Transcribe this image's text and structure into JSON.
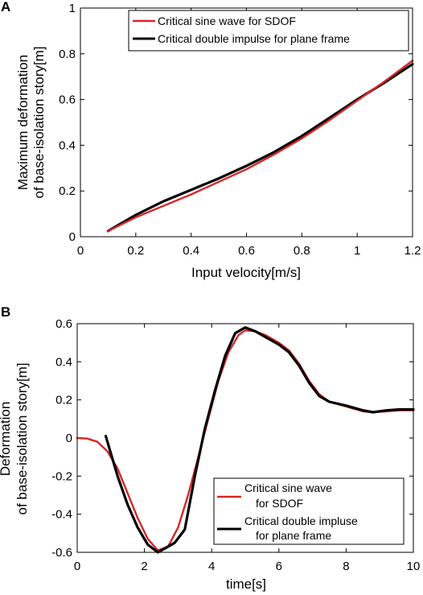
{
  "chart_data": [
    {
      "panel": "A",
      "type": "line",
      "xlabel": "Input velocity[m/s]",
      "ylabel": [
        "Maximum deformation",
        "of base-isolation story[m]"
      ],
      "xlim": [
        0,
        1.2
      ],
      "ylim": [
        0,
        1
      ],
      "xticks": [
        "0",
        "0.2",
        "0.4",
        "0.6",
        "0.8",
        "1",
        "1.2"
      ],
      "yticks": [
        "0",
        "0.2",
        "0.4",
        "0.6",
        "0.8",
        "1"
      ],
      "grid": false,
      "legend_position": "top-right",
      "series": [
        {
          "name": "Critical sine wave for SDOF",
          "color": "#d62728",
          "x": [
            0.1,
            0.2,
            0.3,
            0.4,
            0.5,
            0.6,
            0.7,
            0.8,
            0.9,
            1.0,
            1.1,
            1.2
          ],
          "y": [
            0.025,
            0.085,
            0.135,
            0.185,
            0.24,
            0.295,
            0.36,
            0.43,
            0.51,
            0.595,
            0.68,
            0.77
          ]
        },
        {
          "name": "Critical double impulse for plane frame",
          "color": "#000000",
          "x": [
            0.1,
            0.2,
            0.3,
            0.4,
            0.5,
            0.6,
            0.7,
            0.8,
            0.9,
            1.0,
            1.1,
            1.2
          ],
          "y": [
            0.025,
            0.095,
            0.155,
            0.205,
            0.255,
            0.31,
            0.37,
            0.44,
            0.52,
            0.6,
            0.675,
            0.755
          ]
        }
      ]
    },
    {
      "panel": "B",
      "type": "line",
      "xlabel": "time[s]",
      "ylabel": [
        "Deformation",
        "of base-isolation story[m]"
      ],
      "xlim": [
        0,
        10
      ],
      "ylim": [
        -0.6,
        0.6
      ],
      "xticks": [
        "0",
        "2",
        "4",
        "6",
        "8",
        "10"
      ],
      "yticks": [
        "-0.6",
        "-0.4",
        "-0.2",
        "0",
        "0.2",
        "0.4",
        "0.6"
      ],
      "grid": false,
      "legend_position": "bottom-right",
      "series": [
        {
          "name": "Critical sine wave for SDOF",
          "legend_lines": [
            "Critical sine wave",
            "for SDOF"
          ],
          "color": "#d62728",
          "x": [
            0,
            0.3,
            0.6,
            0.9,
            1.2,
            1.5,
            1.8,
            2.1,
            2.4,
            2.7,
            3.0,
            3.3,
            3.6,
            3.9,
            4.2,
            4.5,
            4.8,
            5.0,
            5.3,
            5.6,
            6.0,
            6.3,
            6.6,
            6.9,
            7.2,
            7.5,
            8.0,
            8.5,
            8.8,
            9.2,
            9.6,
            10.0
          ],
          "y": [
            0,
            -0.003,
            -0.02,
            -0.07,
            -0.16,
            -0.29,
            -0.42,
            -0.53,
            -0.59,
            -0.57,
            -0.47,
            -0.3,
            -0.1,
            0.1,
            0.3,
            0.45,
            0.54,
            0.565,
            0.56,
            0.54,
            0.5,
            0.46,
            0.39,
            0.3,
            0.23,
            0.19,
            0.165,
            0.14,
            0.135,
            0.14,
            0.145,
            0.145
          ]
        },
        {
          "name": "Critical double impluse for plane frame",
          "legend_lines": [
            "Critical double impluse",
            "for plane frame"
          ],
          "color": "#000000",
          "x": [
            0.85,
            1.0,
            1.2,
            1.5,
            1.8,
            2.1,
            2.4,
            2.6,
            2.9,
            3.2,
            3.5,
            3.8,
            4.1,
            4.4,
            4.7,
            5.0,
            5.3,
            5.6,
            6.0,
            6.3,
            6.6,
            6.9,
            7.2,
            7.5,
            8.0,
            8.5,
            8.8,
            9.2,
            9.6,
            10.0
          ],
          "y": [
            0.01,
            -0.08,
            -0.2,
            -0.35,
            -0.47,
            -0.56,
            -0.6,
            -0.58,
            -0.55,
            -0.48,
            -0.2,
            0.05,
            0.25,
            0.43,
            0.55,
            0.58,
            0.56,
            0.53,
            0.49,
            0.45,
            0.38,
            0.29,
            0.22,
            0.19,
            0.17,
            0.145,
            0.135,
            0.145,
            0.15,
            0.15
          ]
        }
      ]
    }
  ]
}
